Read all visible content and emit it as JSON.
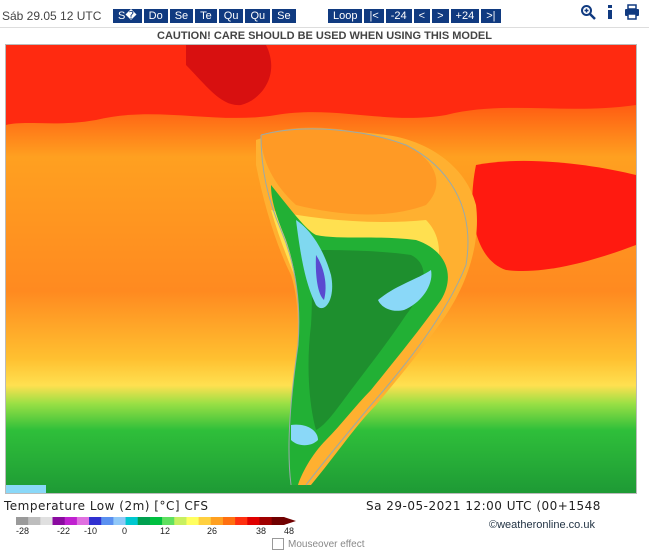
{
  "header": {
    "date_label": "Sáb 29.05 12 UTC",
    "day_buttons": [
      "S�",
      "Do",
      "Se",
      "Te",
      "Qu",
      "Qu",
      "Se"
    ],
    "nav_buttons": [
      "Loop",
      "|<",
      "-24",
      "<",
      ">",
      "+24",
      ">|"
    ],
    "tools": [
      "zoom-icon",
      "info-icon",
      "print-icon"
    ]
  },
  "caution": "CAUTION! CARE SHOULD BE USED WHEN USING THIS MODEL",
  "footer": {
    "parameter": "Temperature Low (2m) [°C] CFS",
    "valid": "Sa 29-05-2021 12:00 UTC (00+1548",
    "credit": "©weatheronline.co.uk",
    "mouseover_label": "Mouseover effect"
  },
  "legend": {
    "ticks": [
      "-28",
      "-22",
      "-10",
      "0",
      "12",
      "26",
      "38",
      "48"
    ],
    "colors": [
      "#9a9a9a",
      "#bdbdbd",
      "#e0e0e0",
      "#8a0aa0",
      "#c020d0",
      "#e070e0",
      "#3030d0",
      "#5a90f0",
      "#90c8f8",
      "#00c8d0",
      "#00a050",
      "#00c040",
      "#60e060",
      "#c8f060",
      "#ffff60",
      "#ffd040",
      "#ffa020",
      "#ff7010",
      "#ff3010",
      "#e00000",
      "#a00000",
      "#700000"
    ]
  },
  "colors": {
    "button": "#103a80",
    "ocean_warm": "#ff9020",
    "ocean_hot": "#ff2a10",
    "ocean_cool": "#2fbf3a",
    "land_cold": "#1e8f2e"
  }
}
